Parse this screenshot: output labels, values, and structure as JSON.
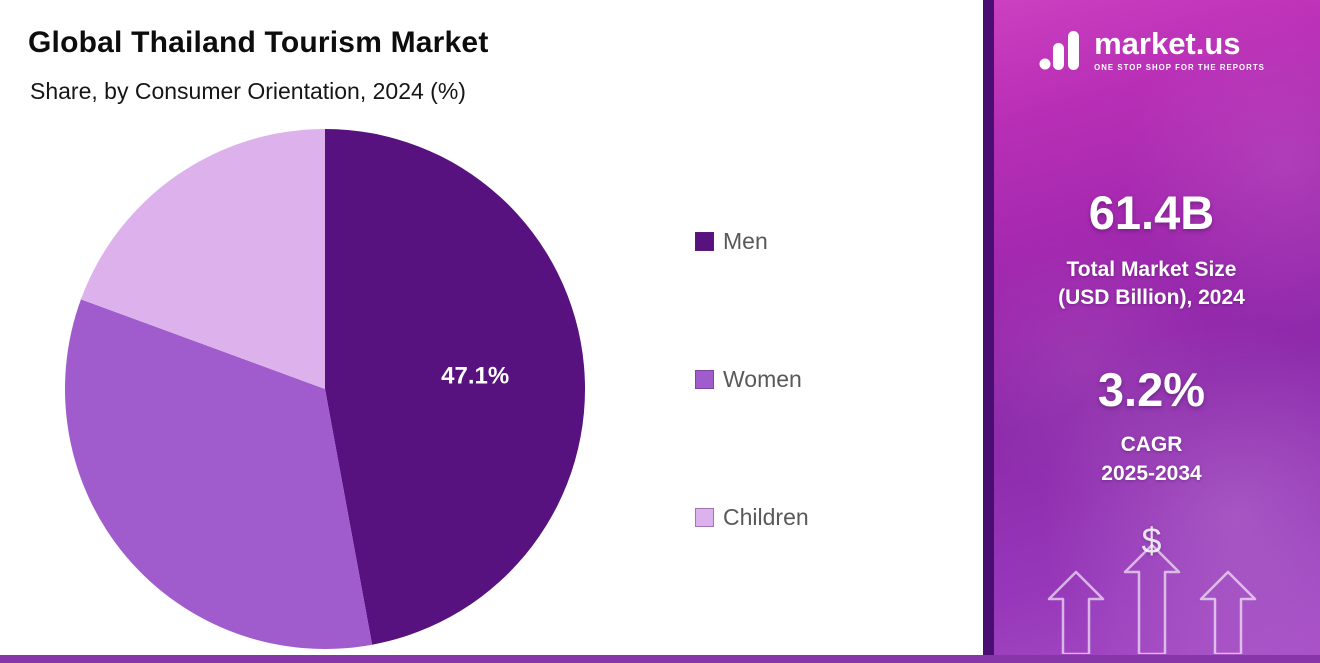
{
  "header": {
    "title": "Global Thailand Tourism Market",
    "subtitle": "Share, by Consumer Orientation, 2024 (%)"
  },
  "chart_data": {
    "type": "pie",
    "title": "Global Thailand Tourism Market",
    "subtitle": "Share, by Consumer Orientation, 2024 (%)",
    "categories": [
      "Men",
      "Women",
      "Children"
    ],
    "values": [
      47.1,
      33.5,
      19.4
    ],
    "colors": [
      "#57127f",
      "#a05bcc",
      "#dcb1ec"
    ],
    "data_labels": [
      "47.1%",
      "",
      ""
    ],
    "start_angle_deg": 0,
    "direction": "clockwise",
    "legend_position": "right",
    "label_color": "#ffffff"
  },
  "side_panel": {
    "logo_text": "market.us",
    "logo_tagline": "ONE STOP SHOP FOR THE REPORTS",
    "market_size_value": "61.4B",
    "market_size_label_line1": "Total Market Size",
    "market_size_label_line2": "(USD Billion), 2024",
    "cagr_value": "3.2%",
    "cagr_label": "CAGR",
    "cagr_period": "2025-2034",
    "dollar_symbol": "$",
    "panel_gradient_top": "#cc41c1",
    "panel_gradient_bottom": "#a74fc6",
    "left_strip_color": "#4a0e72",
    "bottom_bar_color": "#8636a8"
  }
}
